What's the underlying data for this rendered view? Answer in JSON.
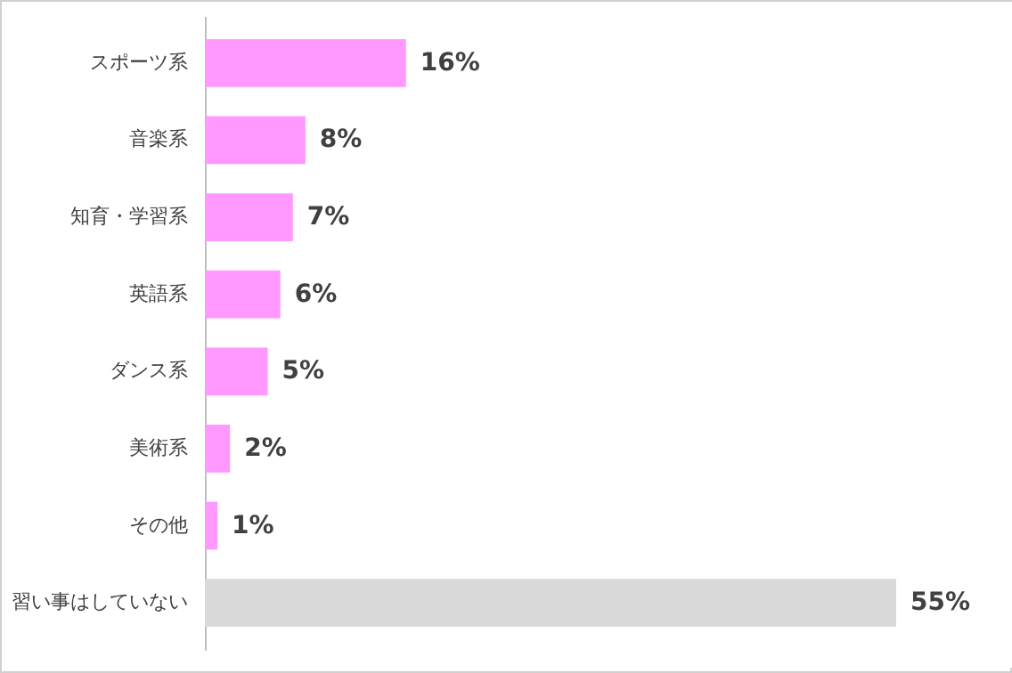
{
  "chart_data": {
    "type": "bar",
    "orientation": "horizontal",
    "categories": [
      "スポーツ系",
      "音楽系",
      "知育・学習系",
      "英語系",
      "ダンス系",
      "美術系",
      "その他",
      "習い事はしていない"
    ],
    "values": [
      16,
      8,
      7,
      6,
      5,
      2,
      1,
      55
    ],
    "value_labels": [
      "16%",
      "8%",
      "7%",
      "6%",
      "5%",
      "2%",
      "1%",
      "55%"
    ],
    "colors": [
      "#ff99ff",
      "#ff99ff",
      "#ff99ff",
      "#ff99ff",
      "#ff99ff",
      "#ff99ff",
      "#ff99ff",
      "#d9d9d9"
    ]
  }
}
